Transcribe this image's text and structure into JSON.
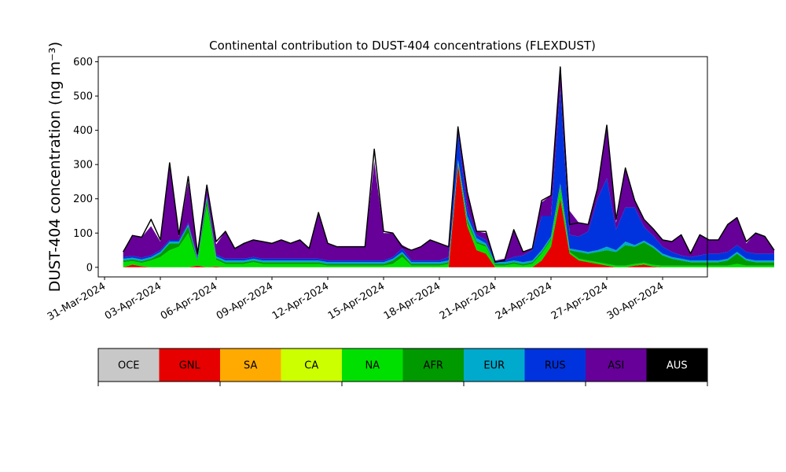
{
  "chart_data": {
    "type": "area",
    "title": "Continental contribution to DUST-404 concentrations (FLEXDUST)",
    "ylabel": "DUST-404 concentration (ng m⁻³)",
    "xlabel": "",
    "x_start": "2024-04-01",
    "x_step_hours": 12,
    "ylim": [
      -28,
      615
    ],
    "yticks": [
      0,
      100,
      200,
      300,
      400,
      500,
      600
    ],
    "xticks": [
      "31-Mar-2024",
      "03-Apr-2024",
      "06-Apr-2024",
      "09-Apr-2024",
      "12-Apr-2024",
      "15-Apr-2024",
      "18-Apr-2024",
      "21-Apr-2024",
      "24-Apr-2024",
      "27-Apr-2024",
      "30-Apr-2024"
    ],
    "grid": false,
    "legend_position": "below",
    "series": [
      {
        "name": "GNL",
        "color": "#e60000",
        "values": [
          0,
          8,
          3,
          0,
          0,
          0,
          0,
          0,
          5,
          0,
          2,
          0,
          0,
          0,
          0,
          0,
          0,
          0,
          0,
          0,
          0,
          0,
          0,
          0,
          0,
          0,
          0,
          0,
          0,
          0,
          0,
          0,
          0,
          0,
          0,
          0,
          300,
          120,
          50,
          40,
          0,
          0,
          0,
          0,
          0,
          20,
          60,
          200,
          40,
          20,
          15,
          10,
          5,
          0,
          0,
          5,
          8,
          2,
          0,
          0,
          0,
          0,
          0,
          0,
          0,
          0,
          0,
          0,
          0,
          0,
          0
        ]
      },
      {
        "name": "NA",
        "color": "#00e000",
        "values": [
          15,
          10,
          10,
          20,
          30,
          50,
          60,
          100,
          10,
          180,
          20,
          10,
          10,
          10,
          15,
          10,
          10,
          10,
          10,
          10,
          10,
          10,
          5,
          5,
          5,
          5,
          5,
          5,
          5,
          10,
          30,
          5,
          5,
          5,
          5,
          10,
          5,
          10,
          20,
          20,
          5,
          5,
          10,
          5,
          10,
          20,
          20,
          30,
          5,
          5,
          5,
          5,
          5,
          5,
          5,
          5,
          5,
          5,
          5,
          5,
          5,
          5,
          5,
          5,
          5,
          5,
          10,
          5,
          5,
          5,
          5
        ]
      },
      {
        "name": "AFR",
        "color": "#009900",
        "values": [
          5,
          5,
          5,
          5,
          10,
          20,
          10,
          20,
          5,
          20,
          5,
          5,
          5,
          5,
          5,
          5,
          5,
          5,
          5,
          5,
          5,
          5,
          5,
          5,
          5,
          5,
          5,
          5,
          5,
          10,
          10,
          5,
          5,
          5,
          5,
          5,
          5,
          10,
          5,
          5,
          5,
          5,
          5,
          5,
          5,
          5,
          5,
          10,
          5,
          20,
          20,
          30,
          40,
          40,
          60,
          50,
          60,
          50,
          30,
          20,
          15,
          10,
          10,
          10,
          10,
          15,
          30,
          15,
          10,
          10,
          10
        ]
      },
      {
        "name": "EUR",
        "color": "#00aacc",
        "values": [
          5,
          5,
          5,
          5,
          5,
          5,
          5,
          5,
          5,
          5,
          5,
          5,
          5,
          5,
          5,
          5,
          5,
          5,
          5,
          5,
          5,
          5,
          5,
          5,
          5,
          5,
          5,
          5,
          5,
          5,
          5,
          5,
          5,
          5,
          5,
          5,
          5,
          10,
          10,
          5,
          5,
          5,
          5,
          5,
          5,
          5,
          5,
          5,
          5,
          5,
          5,
          5,
          10,
          5,
          10,
          5,
          5,
          5,
          5,
          5,
          5,
          5,
          5,
          5,
          5,
          5,
          5,
          5,
          5,
          5,
          5
        ]
      },
      {
        "name": "RUS",
        "color": "#0033dd",
        "values": [
          5,
          5,
          5,
          5,
          5,
          5,
          5,
          5,
          5,
          5,
          5,
          5,
          5,
          5,
          5,
          5,
          5,
          5,
          5,
          5,
          5,
          5,
          5,
          5,
          5,
          5,
          5,
          5,
          5,
          5,
          10,
          5,
          5,
          5,
          5,
          10,
          80,
          20,
          10,
          10,
          5,
          5,
          10,
          20,
          30,
          100,
          60,
          280,
          40,
          40,
          60,
          150,
          200,
          60,
          100,
          110,
          40,
          30,
          20,
          15,
          10,
          10,
          15,
          20,
          20,
          20,
          20,
          20,
          20,
          20,
          20
        ]
      },
      {
        "name": "ASI",
        "color": "#660099",
        "values": [
          15,
          60,
          60,
          85,
          25,
          220,
          10,
          120,
          10,
          20,
          30,
          80,
          30,
          45,
          50,
          50,
          45,
          55,
          45,
          55,
          30,
          130,
          50,
          40,
          40,
          40,
          40,
          290,
          80,
          70,
          10,
          30,
          40,
          60,
          50,
          30,
          15,
          50,
          10,
          20,
          0,
          5,
          80,
          10,
          5,
          40,
          60,
          60,
          70,
          40,
          20,
          30,
          155,
          20,
          110,
          20,
          20,
          20,
          20,
          30,
          60,
          10,
          60,
          40,
          40,
          80,
          80,
          25,
          60,
          50,
          10
        ]
      }
    ],
    "total": [
      45,
      93,
      88,
      140,
      80,
      305,
      95,
      265,
      40,
      240,
      75,
      105,
      55,
      70,
      80,
      75,
      70,
      80,
      70,
      80,
      55,
      160,
      70,
      60,
      60,
      60,
      60,
      345,
      105,
      100,
      60,
      50,
      60,
      80,
      70,
      60,
      410,
      220,
      105,
      105,
      15,
      20,
      110,
      45,
      55,
      195,
      210,
      585,
      125,
      130,
      125,
      230,
      415,
      140,
      290,
      195,
      140,
      112,
      80,
      75,
      95,
      40,
      95,
      80,
      80,
      125,
      145,
      75,
      100,
      90,
      50
    ]
  },
  "legend": {
    "items": [
      {
        "label": "OCE",
        "color": "#c8c8c8",
        "text_color": "#000000"
      },
      {
        "label": "GNL",
        "color": "#e60000",
        "text_color": "#000000"
      },
      {
        "label": "SA",
        "color": "#ffaa00",
        "text_color": "#000000"
      },
      {
        "label": "CA",
        "color": "#ccff00",
        "text_color": "#000000"
      },
      {
        "label": "NA",
        "color": "#00e000",
        "text_color": "#000000"
      },
      {
        "label": "AFR",
        "color": "#009900",
        "text_color": "#000000"
      },
      {
        "label": "EUR",
        "color": "#00aacc",
        "text_color": "#000000"
      },
      {
        "label": "RUS",
        "color": "#0033dd",
        "text_color": "#000000"
      },
      {
        "label": "ASI",
        "color": "#660099",
        "text_color": "#000000"
      },
      {
        "label": "AUS",
        "color": "#000000",
        "text_color": "#ffffff"
      }
    ]
  }
}
